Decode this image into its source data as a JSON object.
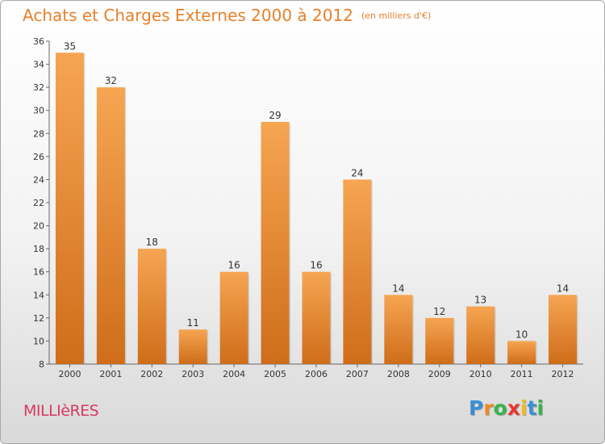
{
  "header": {
    "title": "Achats et Charges Externes 2000 à 2012",
    "subtitle": "(en milliers d'€)"
  },
  "footer": {
    "town": "MILLIèRES",
    "brand": [
      "P",
      "r",
      "o",
      "x",
      "i",
      "t",
      "i"
    ]
  },
  "colors": {
    "title": "#e8802a",
    "town": "#d63a63",
    "bar_top": "#f6a552",
    "bar_bottom": "#cf6d1a",
    "brand": [
      "#3a8fd4",
      "#f08a1c",
      "#39b34a",
      "#e8342c",
      "#f6b91c",
      "#3a8fd4",
      "#39b34a"
    ]
  },
  "chart_data": {
    "type": "bar",
    "title": "Achats et Charges Externes 2000 à 2012",
    "subtitle": "(en milliers d'€)",
    "categories": [
      "2000",
      "2001",
      "2002",
      "2003",
      "2004",
      "2005",
      "2006",
      "2007",
      "2008",
      "2009",
      "2010",
      "2011",
      "2012"
    ],
    "values": [
      35,
      32,
      18,
      11,
      16,
      29,
      16,
      24,
      14,
      12,
      13,
      10,
      14
    ],
    "ylim": [
      8,
      36
    ],
    "yticks": [
      8,
      10,
      12,
      14,
      16,
      18,
      20,
      22,
      24,
      26,
      28,
      30,
      32,
      34,
      36
    ],
    "grid": false,
    "legend": "none"
  }
}
